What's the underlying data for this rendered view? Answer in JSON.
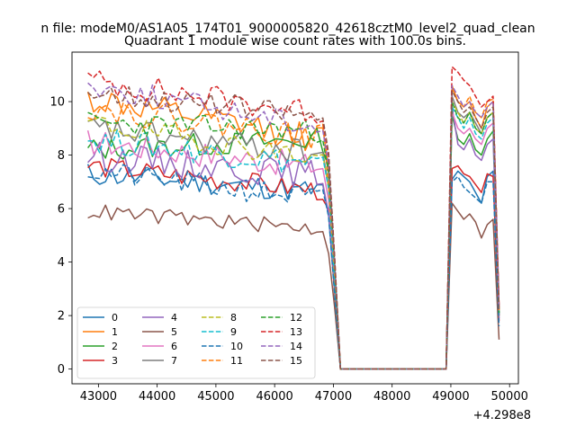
{
  "chart_data": {
    "type": "line",
    "suptitle": "n file: modeM0/AS1A05_174T01_9000005820_42618cztM0_level2_quad_clean",
    "title": "Quadrant 1 module wise count rates with 100.0s bins.",
    "xlabel": "",
    "ylabel": "",
    "x_offset_text": "+4.298e8",
    "xlim": [
      42550,
      50150
    ],
    "ylim": [
      -0.55,
      11.85
    ],
    "xticks": [
      43000,
      44000,
      45000,
      46000,
      47000,
      48000,
      49000,
      50000
    ],
    "yticks": [
      0,
      2,
      4,
      6,
      8,
      10
    ],
    "grid": false,
    "legend": {
      "position": "lower-left",
      "columns": 4
    },
    "x": {
      "seg1_start": 42820,
      "seg1_step": 100,
      "seg1_count": 43,
      "gap_points": [
        47120,
        47220,
        48820,
        48920
      ],
      "seg2_start": 49020,
      "seg2_step": 100,
      "seg2_count": 9
    },
    "series": [
      {
        "name": "0",
        "style": "solid",
        "color": "#1f77b4",
        "seg1_start": 7.3,
        "seg1_end": 6.6,
        "noise": 0.45,
        "seed": 11,
        "seg2": [
          7.1,
          7.4,
          7.2,
          7.0,
          6.6,
          6.2,
          7.2,
          7.4,
          2.0
        ]
      },
      {
        "name": "1",
        "style": "solid",
        "color": "#ff7f0e",
        "seg1_start": 10.1,
        "seg1_end": 8.5,
        "noise": 0.55,
        "seed": 12,
        "seg2": [
          10.6,
          10.0,
          9.8,
          10.0,
          9.4,
          9.0,
          9.8,
          10.0,
          2.3
        ]
      },
      {
        "name": "2",
        "style": "solid",
        "color": "#2ca02c",
        "seg1_start": 8.2,
        "seg1_end": 8.6,
        "noise": 0.45,
        "seed": 13,
        "seg2": [
          9.5,
          8.6,
          8.4,
          8.8,
          8.2,
          8.0,
          8.6,
          8.9,
          2.0
        ]
      },
      {
        "name": "3",
        "style": "solid",
        "color": "#d62728",
        "seg1_start": 7.6,
        "seg1_end": 6.6,
        "noise": 0.4,
        "seed": 14,
        "seg2": [
          7.5,
          7.6,
          7.3,
          7.2,
          6.9,
          6.6,
          7.3,
          7.2,
          1.8
        ]
      },
      {
        "name": "4",
        "style": "solid",
        "color": "#9467bd",
        "seg1_start": 8.0,
        "seg1_end": 7.2,
        "noise": 0.55,
        "seed": 15,
        "seg2": [
          9.8,
          8.4,
          8.2,
          8.6,
          8.0,
          7.8,
          8.4,
          8.6,
          1.9
        ]
      },
      {
        "name": "5",
        "style": "solid",
        "color": "#8c564b",
        "seg1_start": 5.9,
        "seg1_end": 5.2,
        "noise": 0.3,
        "seed": 16,
        "seg2": [
          6.2,
          5.9,
          5.6,
          5.8,
          5.5,
          4.9,
          5.4,
          5.6,
          1.1
        ]
      },
      {
        "name": "6",
        "style": "solid",
        "color": "#e377c2",
        "seg1_start": 8.5,
        "seg1_end": 7.5,
        "noise": 0.5,
        "seed": 17,
        "seg2": [
          9.6,
          9.0,
          8.8,
          9.0,
          8.6,
          8.4,
          9.0,
          9.2,
          2.0
        ]
      },
      {
        "name": "7",
        "style": "solid",
        "color": "#7f7f7f",
        "seg1_start": 9.0,
        "seg1_end": 8.0,
        "noise": 0.5,
        "seed": 18,
        "seg2": [
          10.2,
          9.6,
          9.4,
          9.6,
          9.2,
          8.8,
          9.4,
          9.6,
          2.1
        ]
      },
      {
        "name": "8",
        "style": "dashed",
        "color": "#bcbd22",
        "seg1_start": 9.2,
        "seg1_end": 7.8,
        "noise": 0.45,
        "seed": 19,
        "seg2": [
          10.0,
          9.6,
          9.2,
          9.6,
          9.0,
          8.8,
          9.4,
          9.6,
          2.0
        ]
      },
      {
        "name": "9",
        "style": "dashed",
        "color": "#17becf",
        "seg1_start": 8.6,
        "seg1_end": 7.6,
        "noise": 0.5,
        "seed": 20,
        "seg2": [
          9.8,
          9.4,
          9.0,
          9.4,
          8.8,
          8.6,
          9.2,
          9.4,
          2.0
        ]
      },
      {
        "name": "10",
        "style": "dashed",
        "color": "#1f77b4",
        "seg1_start": 7.4,
        "seg1_end": 6.3,
        "noise": 0.45,
        "seed": 21,
        "seg2": [
          7.0,
          7.2,
          6.8,
          6.6,
          6.4,
          6.2,
          7.0,
          7.0,
          1.6
        ]
      },
      {
        "name": "11",
        "style": "dashed",
        "color": "#ff7f0e",
        "seg1_start": 9.8,
        "seg1_end": 8.6,
        "noise": 0.5,
        "seed": 22,
        "seg2": [
          10.5,
          10.0,
          9.8,
          10.2,
          9.6,
          9.4,
          10.0,
          10.1,
          2.2
        ]
      },
      {
        "name": "12",
        "style": "dashed",
        "color": "#2ca02c",
        "seg1_start": 9.2,
        "seg1_end": 8.9,
        "noise": 0.45,
        "seed": 23,
        "seg2": [
          10.0,
          9.4,
          9.2,
          9.6,
          9.0,
          8.8,
          9.4,
          9.6,
          2.1
        ]
      },
      {
        "name": "13",
        "style": "dashed",
        "color": "#d62728",
        "seg1_start": 10.8,
        "seg1_end": 9.5,
        "noise": 0.5,
        "seed": 24,
        "seg2": [
          11.3,
          11.1,
          10.8,
          10.6,
          10.2,
          9.8,
          10.0,
          10.2,
          2.4
        ]
      },
      {
        "name": "14",
        "style": "dashed",
        "color": "#9467bd",
        "seg1_start": 10.6,
        "seg1_end": 9.0,
        "noise": 0.45,
        "seed": 25,
        "seg2": [
          10.6,
          10.2,
          9.8,
          10.0,
          9.6,
          9.4,
          9.8,
          10.0,
          2.3
        ]
      },
      {
        "name": "15",
        "style": "dashed",
        "color": "#8c564b",
        "seg1_start": 10.4,
        "seg1_end": 9.4,
        "noise": 0.45,
        "seed": 26,
        "seg2": [
          10.4,
          10.0,
          9.6,
          9.8,
          9.4,
          9.0,
          9.6,
          9.8,
          2.2
        ]
      }
    ]
  }
}
